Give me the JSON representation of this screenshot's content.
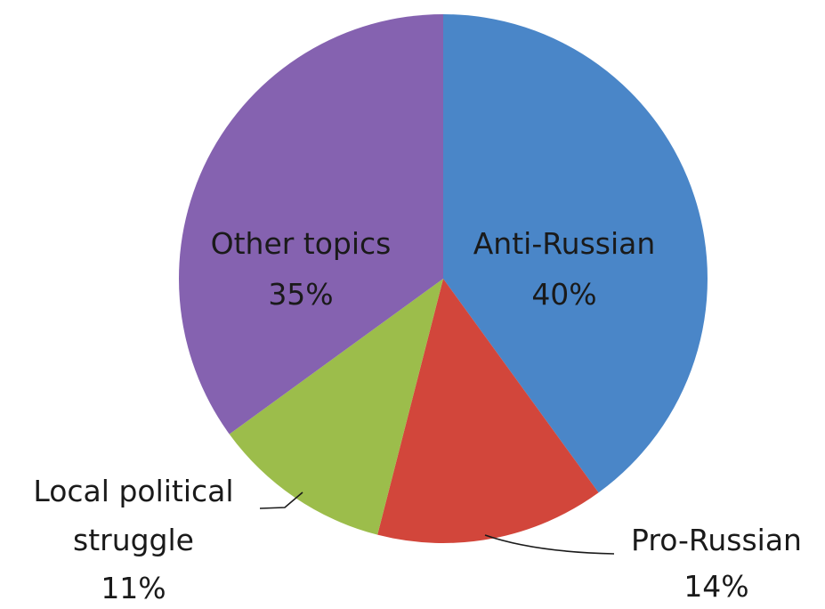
{
  "chart_data": {
    "type": "pie",
    "slices": [
      {
        "label": "Anti-Russian",
        "value": 40,
        "value_label": "40%",
        "color": "#4a86c8"
      },
      {
        "label": "Pro-Russian",
        "value": 14,
        "value_label": "14%",
        "color": "#d2463b"
      },
      {
        "label": "Local political struggle",
        "label_lines": [
          "Local political",
          "struggle"
        ],
        "value": 11,
        "value_label": "11%",
        "color": "#9cbd4b"
      },
      {
        "label": "Other topics",
        "value": 35,
        "value_label": "35%",
        "color": "#8562b0"
      }
    ],
    "start_angle_deg": 0,
    "direction": "clockwise",
    "legend": "none"
  }
}
